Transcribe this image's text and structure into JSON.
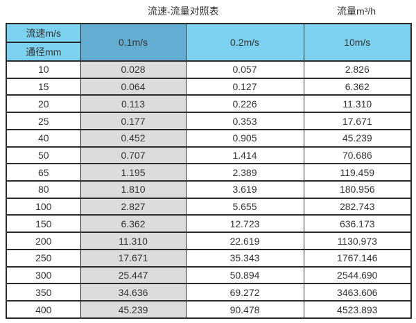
{
  "page": {
    "title_left": "流速-流量对照表",
    "title_right": "流量m³/h"
  },
  "chart_data": {
    "type": "table",
    "title": "流速-流量对照表",
    "unit_label": "流量m³/h",
    "row_header_top": "流速m/s",
    "row_header_bottom": "通径mm",
    "columns": [
      "通径mm",
      "0.1m/s",
      "0.2m/s",
      "10m/s"
    ],
    "rows": [
      [
        "10",
        "0.028",
        "0.057",
        "2.826"
      ],
      [
        "15",
        "0.064",
        "0.127",
        "6.362"
      ],
      [
        "20",
        "0.113",
        "0.226",
        "11.310"
      ],
      [
        "25",
        "0.177",
        "0.353",
        "17.671"
      ],
      [
        "40",
        "0.452",
        "0.905",
        "45.239"
      ],
      [
        "50",
        "0.707",
        "1.414",
        "70.686"
      ],
      [
        "65",
        "1.195",
        "2.389",
        "119.459"
      ],
      [
        "80",
        "1.810",
        "3.619",
        "180.956"
      ],
      [
        "100",
        "2.827",
        "5.655",
        "282.743"
      ],
      [
        "150",
        "6.362",
        "12.723",
        "636.173"
      ],
      [
        "200",
        "11.310",
        "22.619",
        "1130.973"
      ],
      [
        "250",
        "17.671",
        "35.343",
        "1767.146"
      ],
      [
        "300",
        "25.447",
        "50.894",
        "2544.690"
      ],
      [
        "350",
        "34.636",
        "69.272",
        "3463.606"
      ],
      [
        "400",
        "45.239",
        "90.478",
        "4523.893"
      ]
    ]
  },
  "colors": {
    "header_light_blue": "#7dd2f1",
    "header_dark_blue": "#63add3",
    "shaded_column_gray": "#dcdcdc",
    "border": "#2b2b2b",
    "text": "#333333"
  }
}
